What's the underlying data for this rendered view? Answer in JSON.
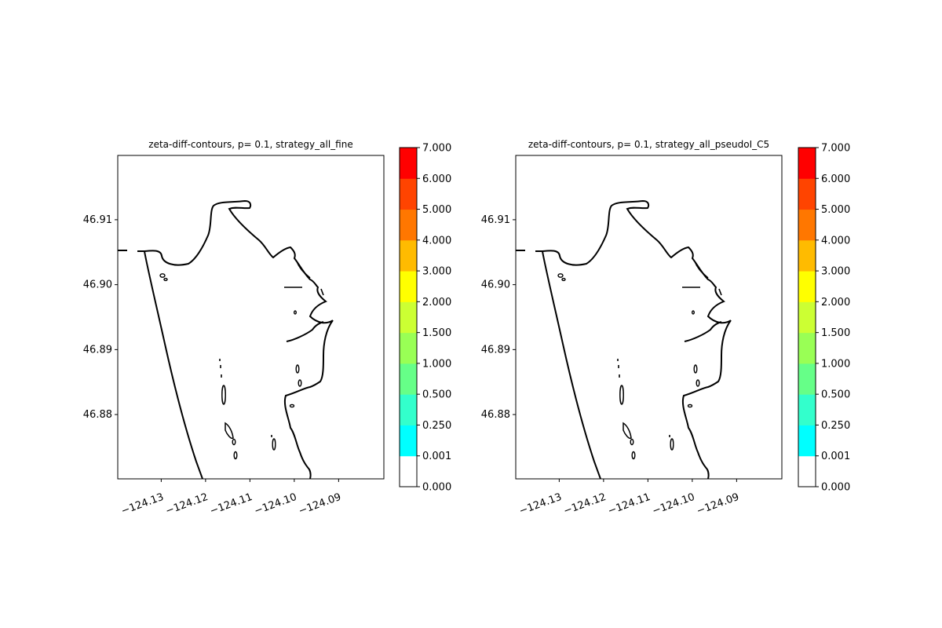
{
  "chart_data": [
    {
      "type": "contour",
      "title": "zeta-diff-contours, p= 0.1, strategy_all_fine",
      "xlabel": "",
      "ylabel": "",
      "x_ticks": [
        "−124.13",
        "−124.12",
        "−124.11",
        "−124.10",
        "−124.09"
      ],
      "x_tick_values": [
        -124.13,
        -124.12,
        -124.11,
        -124.1,
        -124.09
      ],
      "y_ticks": [
        "46.88",
        "46.89",
        "46.90",
        "46.91"
      ],
      "y_tick_values": [
        46.88,
        46.89,
        46.9,
        46.91
      ],
      "xlim": [
        -124.1398,
        -124.0798
      ],
      "ylim": [
        46.8701,
        46.9199
      ],
      "filled_contours": "none visible",
      "colorbar": {
        "levels": [
          "0.000",
          "0.001",
          "0.250",
          "0.500",
          "1.000",
          "1.500",
          "2.000",
          "3.000",
          "4.000",
          "5.000",
          "6.000",
          "7.000"
        ],
        "colors": [
          "#ffffff",
          "#00ffff",
          "#33ffcc",
          "#66ff88",
          "#99ff55",
          "#ccff33",
          "#ffff00",
          "#ffbb00",
          "#ff7700",
          "#ff4400",
          "#ff0000"
        ]
      }
    },
    {
      "type": "contour",
      "title": "zeta-diff-contours, p= 0.1, strategy_all_pseudoI_C5",
      "xlabel": "",
      "ylabel": "",
      "x_ticks": [
        "−124.13",
        "−124.12",
        "−124.11",
        "−124.10",
        "−124.09"
      ],
      "x_tick_values": [
        -124.13,
        -124.12,
        -124.11,
        -124.1,
        -124.09
      ],
      "y_ticks": [
        "46.88",
        "46.89",
        "46.90",
        "46.91"
      ],
      "y_tick_values": [
        46.88,
        46.89,
        46.9,
        46.91
      ],
      "xlim": [
        -124.1398,
        -124.0798
      ],
      "ylim": [
        46.8701,
        46.9199
      ],
      "filled_contours": "none visible",
      "colorbar": {
        "levels": [
          "0.000",
          "0.001",
          "0.250",
          "0.500",
          "1.000",
          "1.500",
          "2.000",
          "3.000",
          "4.000",
          "5.000",
          "6.000",
          "7.000"
        ],
        "colors": [
          "#ffffff",
          "#00ffff",
          "#33ffcc",
          "#66ff88",
          "#99ff55",
          "#ccff33",
          "#ffff00",
          "#ffbb00",
          "#ff7700",
          "#ff4400",
          "#ff0000"
        ]
      }
    }
  ],
  "colors": {
    "shoreline": "#000000",
    "axes": "#000000",
    "background": "#ffffff"
  }
}
